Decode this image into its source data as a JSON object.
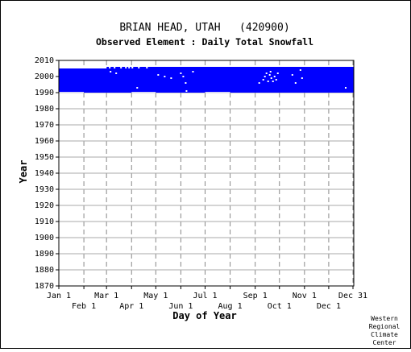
{
  "chart_data": {
    "type": "heatmap",
    "title": "BRIAN HEAD, UTAH   (420900)",
    "subtitle": "Observed Element : Daily Total Snowfall",
    "xlabel": "Day of Year",
    "ylabel": "Year",
    "xlim": [
      1,
      366
    ],
    "ylim": [
      1870,
      2010
    ],
    "x_ticks_top": [
      {
        "label": "Jan 1",
        "day": 1
      },
      {
        "label": "Mar 1",
        "day": 60
      },
      {
        "label": "May 1",
        "day": 121
      },
      {
        "label": "Jul 1",
        "day": 182
      },
      {
        "label": "Sep 1",
        "day": 244
      },
      {
        "label": "Nov 1",
        "day": 305
      },
      {
        "label": "Dec 31",
        "day": 365
      }
    ],
    "x_ticks_bottom": [
      {
        "label": "Feb 1",
        "day": 32
      },
      {
        "label": "Apr 1",
        "day": 91
      },
      {
        "label": "Jun 1",
        "day": 152
      },
      {
        "label": "Aug 1",
        "day": 213
      },
      {
        "label": "Oct 1",
        "day": 274
      },
      {
        "label": "Dec 1",
        "day": 335
      }
    ],
    "y_ticks": [
      1870,
      1880,
      1890,
      1900,
      1910,
      1920,
      1930,
      1940,
      1950,
      1960,
      1970,
      1980,
      1990,
      2000,
      2010
    ],
    "grid": true,
    "data_color": "#0000ff",
    "observed_block": {
      "day_start": 1,
      "day_end": 366,
      "year_start": 1990,
      "year_end": 2005
    },
    "missing_periods": [
      {
        "day_start": 1,
        "day_end": 32,
        "year_start": 1990,
        "year_end": 1990.4
      },
      {
        "day_start": 1,
        "day_end": 60,
        "year_start": 2005,
        "year_end": 2006
      },
      {
        "day_start": 91,
        "day_end": 121,
        "year_start": 1990,
        "year_end": 1990.4
      },
      {
        "day_start": 182,
        "day_end": 213,
        "year_start": 1990,
        "year_end": 1990.4
      }
    ],
    "observed_strip_2005": [
      {
        "day_start": 60,
        "day_end": 366,
        "year_start": 2005,
        "year_end": 2006
      }
    ],
    "missing_points": [
      {
        "day": 64,
        "year": 2005.5
      },
      {
        "day": 70,
        "year": 2005.5
      },
      {
        "day": 78,
        "year": 2005.5
      },
      {
        "day": 84,
        "year": 2005.5
      },
      {
        "day": 88,
        "year": 2005.5
      },
      {
        "day": 92,
        "year": 2005.5
      },
      {
        "day": 100,
        "year": 2005.5
      },
      {
        "day": 110,
        "year": 2005.5
      },
      {
        "day": 65,
        "year": 2003
      },
      {
        "day": 72,
        "year": 2002
      },
      {
        "day": 98,
        "year": 1993
      },
      {
        "day": 124,
        "year": 2001
      },
      {
        "day": 132,
        "year": 2000
      },
      {
        "day": 140,
        "year": 1999
      },
      {
        "day": 152,
        "year": 2002
      },
      {
        "day": 155,
        "year": 2000
      },
      {
        "day": 158,
        "year": 1996
      },
      {
        "day": 159,
        "year": 1991
      },
      {
        "day": 167,
        "year": 2003
      },
      {
        "day": 249,
        "year": 1996
      },
      {
        "day": 254,
        "year": 1998
      },
      {
        "day": 256,
        "year": 2000
      },
      {
        "day": 258,
        "year": 2002
      },
      {
        "day": 260,
        "year": 1997
      },
      {
        "day": 262,
        "year": 2001
      },
      {
        "day": 263,
        "year": 2003
      },
      {
        "day": 264,
        "year": 1999
      },
      {
        "day": 266,
        "year": 1997
      },
      {
        "day": 268,
        "year": 2000
      },
      {
        "day": 270,
        "year": 1998
      },
      {
        "day": 272,
        "year": 2002
      },
      {
        "day": 290,
        "year": 2001
      },
      {
        "day": 294,
        "year": 1996
      },
      {
        "day": 302,
        "year": 1999
      },
      {
        "day": 300,
        "year": 2004
      },
      {
        "day": 356,
        "year": 1993
      }
    ]
  },
  "footer": {
    "lines": [
      "Western",
      "Regional",
      "Climate",
      "Center"
    ]
  }
}
